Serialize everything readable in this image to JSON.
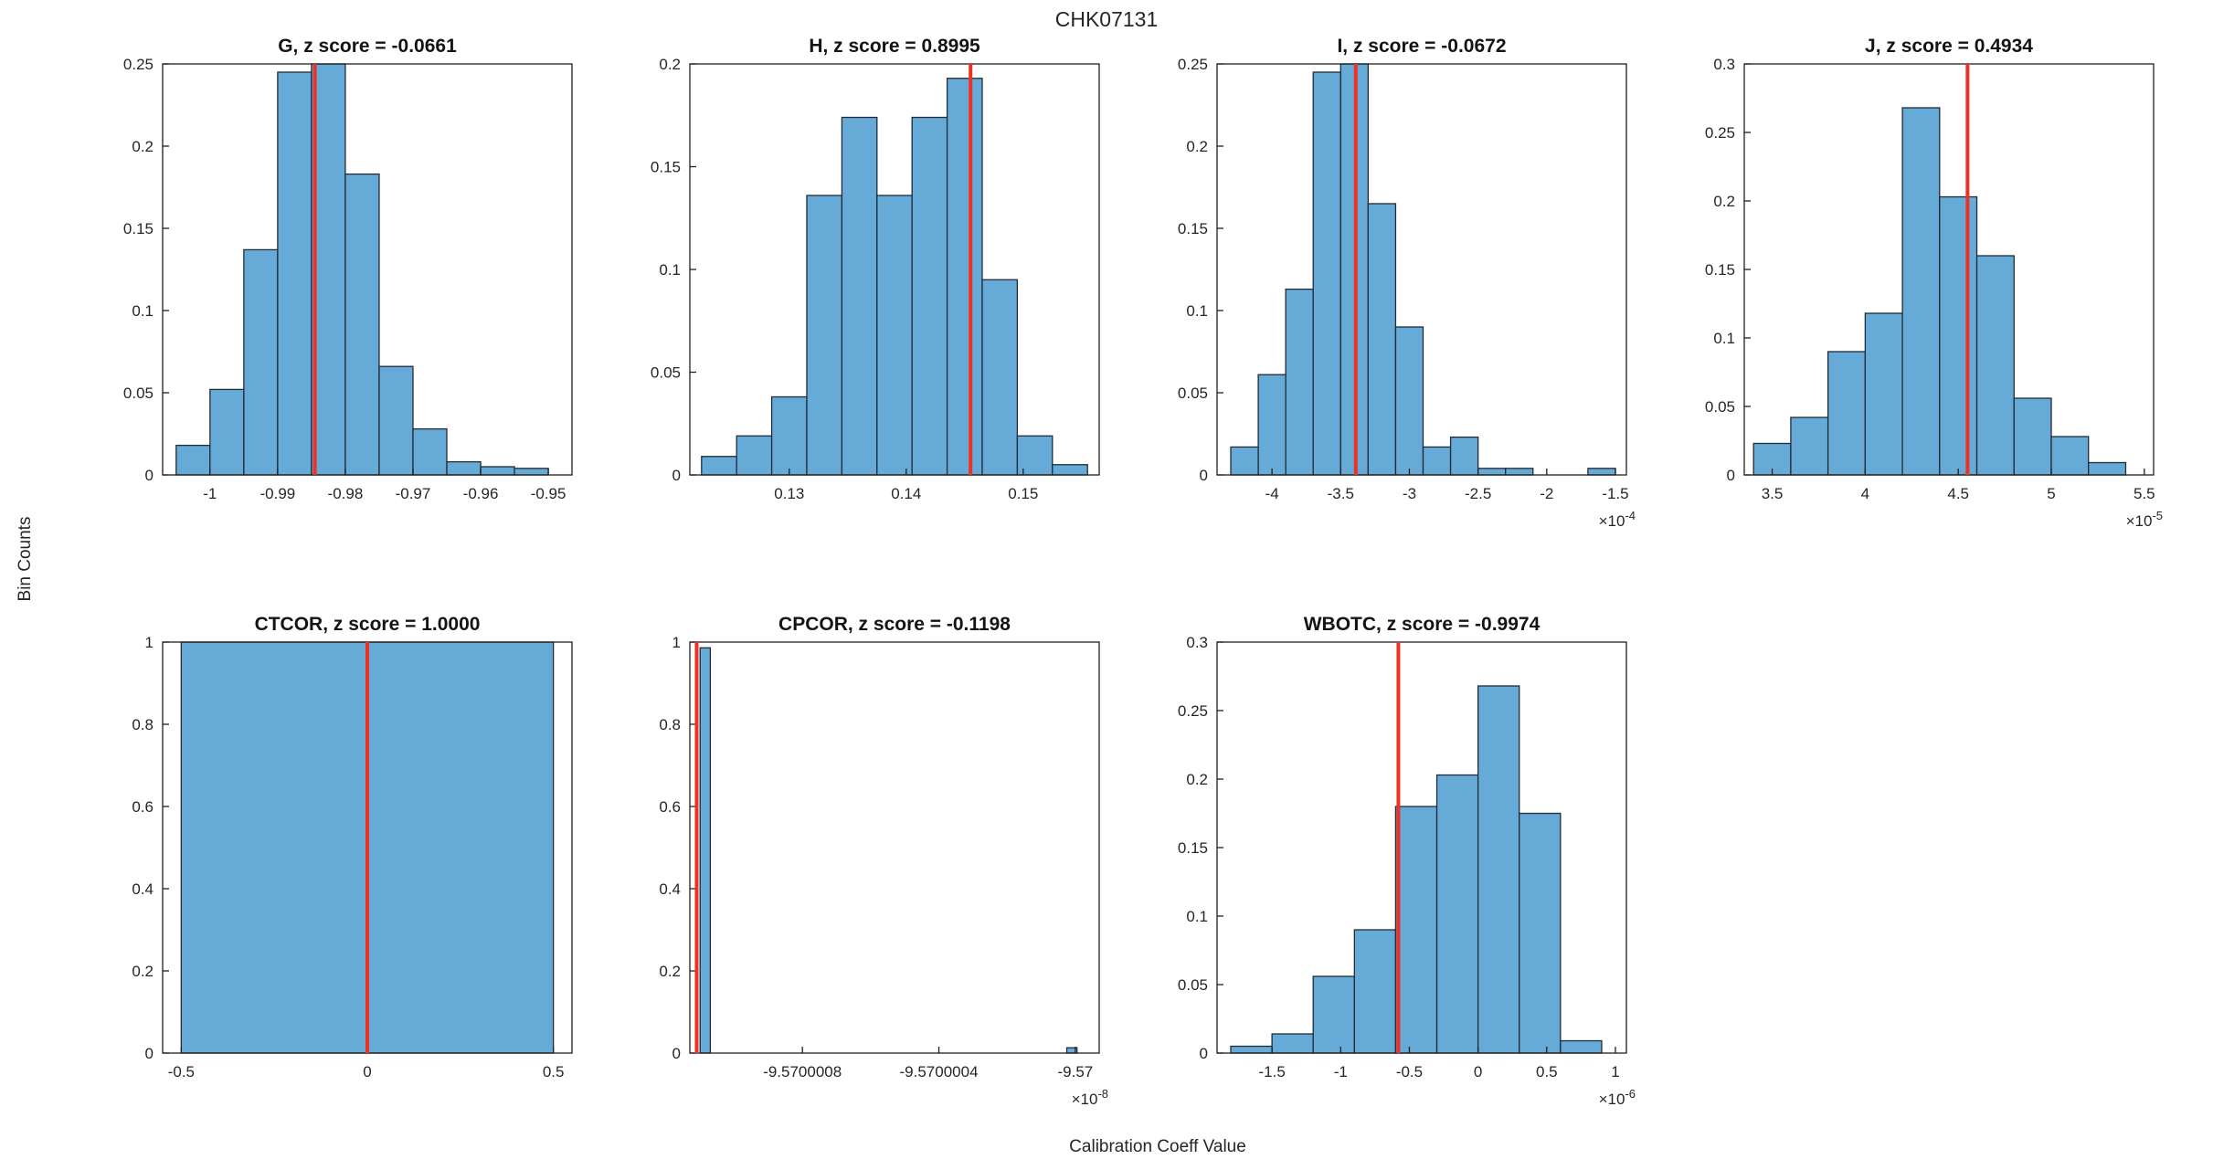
{
  "chart_data": {
    "type": "bar",
    "subtype": "histogram-grid",
    "suptitle": "CHK07131",
    "xlabel": "Calibration Coeff Value",
    "ylabel": "Bin Counts",
    "style": {
      "bar_fill": "#66aad7",
      "bar_edge": "#222b36",
      "marker_line": "#ed3124",
      "axis": "#1f1f1f"
    },
    "plots": [
      {
        "id": "G",
        "title": "G, z score = -0.0661",
        "z_score": -0.0661,
        "xlim": [
          -1.007,
          -0.9465
        ],
        "ylim": [
          0,
          0.25
        ],
        "xticks": [
          -1,
          -0.99,
          -0.98,
          -0.97,
          -0.96,
          -0.95
        ],
        "xtick_labels": [
          "-1",
          "-0.99",
          "-0.98",
          "-0.97",
          "-0.96",
          "-0.95"
        ],
        "yticks": [
          0,
          0.05,
          0.1,
          0.15,
          0.2,
          0.25
        ],
        "ytick_labels": [
          "0",
          "0.05",
          "0.1",
          "0.15",
          "0.2",
          "0.25"
        ],
        "bin_edges": [
          -1.005,
          -1.0,
          -0.995,
          -0.99,
          -0.985,
          -0.98,
          -0.975,
          -0.97,
          -0.965,
          -0.96,
          -0.955,
          -0.95
        ],
        "heights": [
          0.018,
          0.052,
          0.137,
          0.245,
          0.25,
          0.183,
          0.066,
          0.028,
          0.008,
          0.005,
          0.004
        ],
        "marker_x": -0.9845,
        "x_exponent": null
      },
      {
        "id": "H",
        "title": "H, z score = 0.8995",
        "z_score": 0.8995,
        "xlim": [
          0.1215,
          0.1565
        ],
        "ylim": [
          0,
          0.2
        ],
        "xticks": [
          0.13,
          0.14,
          0.15
        ],
        "xtick_labels": [
          "0.13",
          "0.14",
          "0.15"
        ],
        "yticks": [
          0,
          0.05,
          0.1,
          0.15,
          0.2
        ],
        "ytick_labels": [
          "0",
          "0.05",
          "0.1",
          "0.15",
          "0.2"
        ],
        "bin_edges": [
          0.1225,
          0.1255,
          0.1285,
          0.1315,
          0.1345,
          0.1375,
          0.1405,
          0.1435,
          0.1465,
          0.1495,
          0.1525,
          0.1555
        ],
        "heights": [
          0.009,
          0.019,
          0.038,
          0.136,
          0.174,
          0.136,
          0.174,
          0.193,
          0.095,
          0.019,
          0.005
        ],
        "marker_x": 0.1455,
        "x_exponent": null
      },
      {
        "id": "I",
        "title": "I, z score = -0.0672",
        "z_score": -0.0672,
        "xlim": [
          -4.4,
          -1.42
        ],
        "ylim": [
          0,
          0.25
        ],
        "xticks": [
          -4,
          -3.5,
          -3,
          -2.5,
          -2,
          -1.5
        ],
        "xtick_labels": [
          "-4",
          "-3.5",
          "-3",
          "-2.5",
          "-2",
          "-1.5"
        ],
        "yticks": [
          0,
          0.05,
          0.1,
          0.15,
          0.2,
          0.25
        ],
        "ytick_labels": [
          "0",
          "0.05",
          "0.1",
          "0.15",
          "0.2",
          "0.25"
        ],
        "bin_edges": [
          -4.3,
          -4.1,
          -3.9,
          -3.7,
          -3.5,
          -3.3,
          -3.1,
          -2.9,
          -2.7,
          -2.5,
          -2.3,
          -2.1,
          -1.9,
          -1.7,
          -1.5
        ],
        "heights": [
          0.017,
          0.061,
          0.113,
          0.245,
          0.25,
          0.165,
          0.09,
          0.017,
          0.023,
          0.004,
          0.004,
          0,
          0,
          0.004
        ],
        "marker_x": -3.39,
        "x_exponent": "-4"
      },
      {
        "id": "J",
        "title": "J, z score = 0.4934",
        "z_score": 0.4934,
        "xlim": [
          3.35,
          5.55
        ],
        "ylim": [
          0,
          0.3
        ],
        "xticks": [
          3.5,
          4,
          4.5,
          5,
          5.5
        ],
        "xtick_labels": [
          "3.5",
          "4",
          "4.5",
          "5",
          "5.5"
        ],
        "yticks": [
          0,
          0.05,
          0.1,
          0.15,
          0.2,
          0.25,
          0.3
        ],
        "ytick_labels": [
          "0",
          "0.05",
          "0.1",
          "0.15",
          "0.2",
          "0.25",
          "0.3"
        ],
        "bin_edges": [
          3.4,
          3.6,
          3.8,
          4.0,
          4.2,
          4.4,
          4.6,
          4.8,
          5.0,
          5.2,
          5.4
        ],
        "heights": [
          0.023,
          0.042,
          0.09,
          0.118,
          0.268,
          0.203,
          0.16,
          0.056,
          0.028,
          0.009
        ],
        "marker_x": 4.55,
        "x_exponent": "-5"
      },
      {
        "id": "CTCOR",
        "title": "CTCOR, z score = 1.0000",
        "z_score": 1.0,
        "xlim": [
          -0.55,
          0.55
        ],
        "ylim": [
          0,
          1
        ],
        "xticks": [
          -0.5,
          0,
          0.5
        ],
        "xtick_labels": [
          "-0.5",
          "0",
          "0.5"
        ],
        "yticks": [
          0,
          0.2,
          0.4,
          0.6,
          0.8,
          1
        ],
        "ytick_labels": [
          "0",
          "0.2",
          "0.4",
          "0.6",
          "0.8",
          "1"
        ],
        "bin_edges": [
          -0.5,
          0.5
        ],
        "heights": [
          1
        ],
        "marker_x": 0,
        "x_exponent": null
      },
      {
        "id": "CPCOR",
        "title": "CPCOR, z score = -0.1198",
        "z_score": -0.1198,
        "xlim": [
          -9.57000113,
          -9.56999993
        ],
        "ylim": [
          0,
          1
        ],
        "xticks": [
          -9.5700008,
          -9.5700004,
          -9.57
        ],
        "xtick_labels": [
          "-9.5700008",
          "-9.5700004",
          "-9.57"
        ],
        "yticks": [
          0,
          0.2,
          0.4,
          0.6,
          0.8,
          1
        ],
        "ytick_labels": [
          "0",
          "0.2",
          "0.4",
          "0.6",
          "0.8",
          "1"
        ],
        "bars": [
          {
            "x0": -9.5700011,
            "x1": -9.57000107,
            "h": 0.986
          },
          {
            "x0": -9.570000025,
            "x1": -9.569999995,
            "h": 0.013
          }
        ],
        "marker_x": -9.57000111,
        "x_exponent": "-8"
      },
      {
        "id": "WBOTC",
        "title": "WBOTC, z score = -0.9974",
        "z_score": -0.9974,
        "xlim": [
          -1.9,
          1.08
        ],
        "ylim": [
          0,
          0.3
        ],
        "xticks": [
          -1.5,
          -1,
          -0.5,
          0,
          0.5,
          1
        ],
        "xtick_labels": [
          "-1.5",
          "-1",
          "-0.5",
          "0",
          "0.5",
          "1"
        ],
        "yticks": [
          0,
          0.05,
          0.1,
          0.15,
          0.2,
          0.25,
          0.3
        ],
        "ytick_labels": [
          "0",
          "0.05",
          "0.1",
          "0.15",
          "0.2",
          "0.25",
          "0.3"
        ],
        "bin_edges": [
          -1.8,
          -1.5,
          -1.2,
          -0.9,
          -0.6,
          -0.3,
          0,
          0.3,
          0.6,
          0.9
        ],
        "heights": [
          0.005,
          0.014,
          0.056,
          0.09,
          0.18,
          0.203,
          0.268,
          0.175,
          0.009
        ],
        "marker_x": -0.58,
        "x_exponent": "-6"
      }
    ]
  }
}
